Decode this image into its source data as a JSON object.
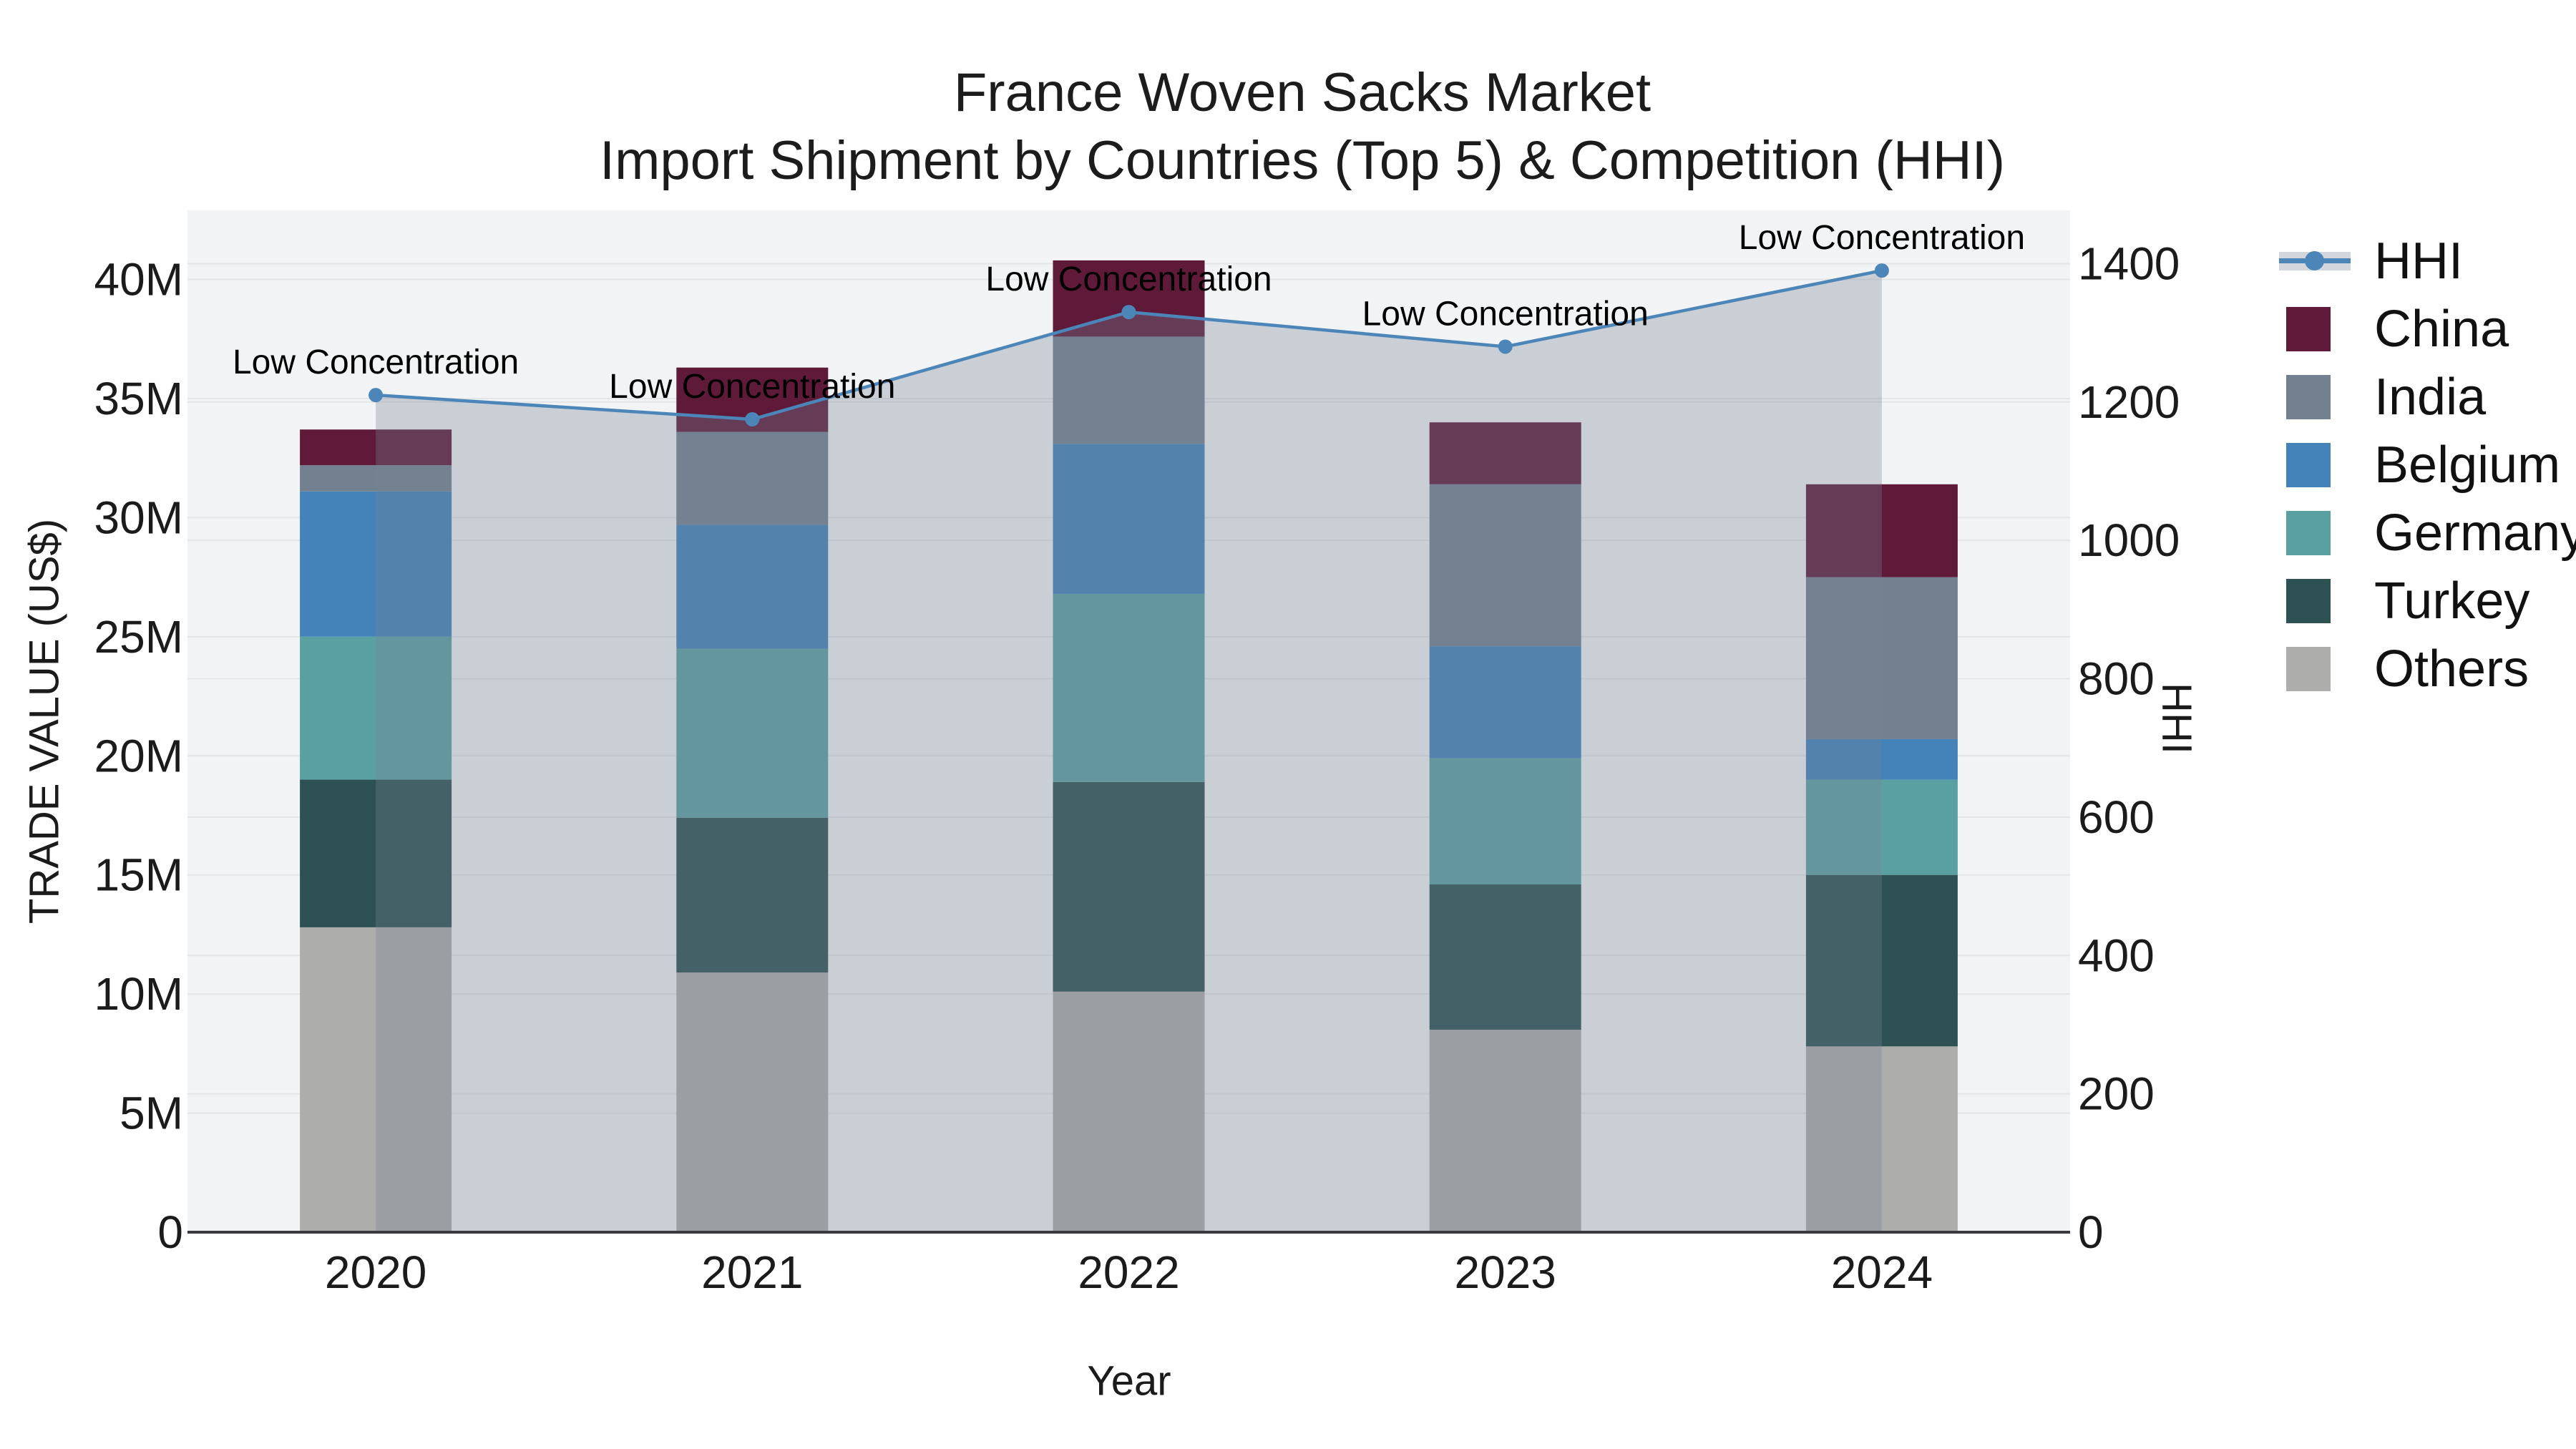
{
  "title": {
    "line1": "France Woven Sacks Market",
    "line2": "Import Shipment by Countries (Top 5) & Competition (HHI)"
  },
  "axes": {
    "left": {
      "title": "TRADE VALUE (US$)",
      "tick_values": [
        0,
        5,
        10,
        15,
        20,
        25,
        30,
        35,
        40
      ],
      "tick_labels": [
        "0",
        "5M",
        "10M",
        "15M",
        "20M",
        "25M",
        "30M",
        "35M",
        "40M"
      ]
    },
    "right": {
      "title": "HHI",
      "tick_values": [
        0,
        200,
        400,
        600,
        800,
        1000,
        1200,
        1400
      ],
      "tick_labels": [
        "0",
        "200",
        "400",
        "600",
        "800",
        "1000",
        "1200",
        "1400"
      ]
    },
    "x": {
      "title": "Year"
    }
  },
  "legend": {
    "items": [
      {
        "label": "HHI",
        "type": "line",
        "line_color": "#4C86B9",
        "band_color": "#D3D7DD"
      },
      {
        "label": "China",
        "type": "swatch",
        "color": "#5F1A39"
      },
      {
        "label": "India",
        "type": "swatch",
        "color": "#72808F"
      },
      {
        "label": "Belgium",
        "type": "swatch",
        "color": "#4383B9"
      },
      {
        "label": "Germany",
        "type": "swatch",
        "color": "#5AA0A1"
      },
      {
        "label": "Turkey",
        "type": "swatch",
        "color": "#2E5153"
      },
      {
        "label": "Others",
        "type": "swatch",
        "color": "#ADADAC"
      }
    ]
  },
  "chart_data": {
    "type": "bar",
    "subtype": "stacked-bars-with-line-overlay",
    "title": "France Woven Sacks Market",
    "subtitle": "Import Shipment by Countries (Top 5) & Competition (HHI)",
    "categories": [
      "2020",
      "2021",
      "2022",
      "2023",
      "2024"
    ],
    "values_unit": "million US$ (trade value, left axis)",
    "series": [
      {
        "name": "China",
        "color": "#5F1A39",
        "values": [
          1.5,
          2.7,
          3.2,
          2.6,
          3.9
        ]
      },
      {
        "name": "India",
        "color": "#72808F",
        "values": [
          1.1,
          3.9,
          4.5,
          6.8,
          6.8
        ]
      },
      {
        "name": "Belgium",
        "color": "#4383B9",
        "values": [
          6.1,
          5.2,
          6.3,
          4.7,
          1.7
        ]
      },
      {
        "name": "Germany",
        "color": "#5AA0A1",
        "values": [
          6.0,
          7.1,
          7.9,
          5.3,
          4.0
        ]
      },
      {
        "name": "Turkey",
        "color": "#2E5153",
        "values": [
          6.2,
          6.5,
          8.8,
          6.1,
          7.2
        ]
      },
      {
        "name": "Others",
        "color": "#ADADAC",
        "values": [
          12.8,
          10.9,
          10.1,
          8.5,
          7.8
        ]
      }
    ],
    "stack_bottom_to_top": [
      "Others",
      "Turkey",
      "Germany",
      "Belgium",
      "India",
      "China"
    ],
    "bar_totals": [
      33.7,
      36.3,
      40.8,
      34.0,
      31.4
    ],
    "line": {
      "name": "HHI",
      "axis": "right",
      "color": "#4C86B9",
      "area_fill": "rgba(118,131,150,0.32)",
      "values": [
        1210,
        1175,
        1330,
        1280,
        1390
      ],
      "point_annotations": [
        "Low Concentration",
        "Low Concentration",
        "Low Concentration",
        "Low Concentration",
        "Low Concentration"
      ]
    },
    "xlabel": "Year",
    "ylabel_left": "TRADE VALUE (US$)",
    "ylabel_right": "HHI",
    "ylim_left": [
      0,
      42.9
    ],
    "ylim_right": [
      0,
      1477
    ],
    "grid": "on",
    "grid_color": "#E4E5E7",
    "plot_bg": "#F2F3F4",
    "axis_line_color": "#3A3A3E",
    "legend_position": "right"
  }
}
